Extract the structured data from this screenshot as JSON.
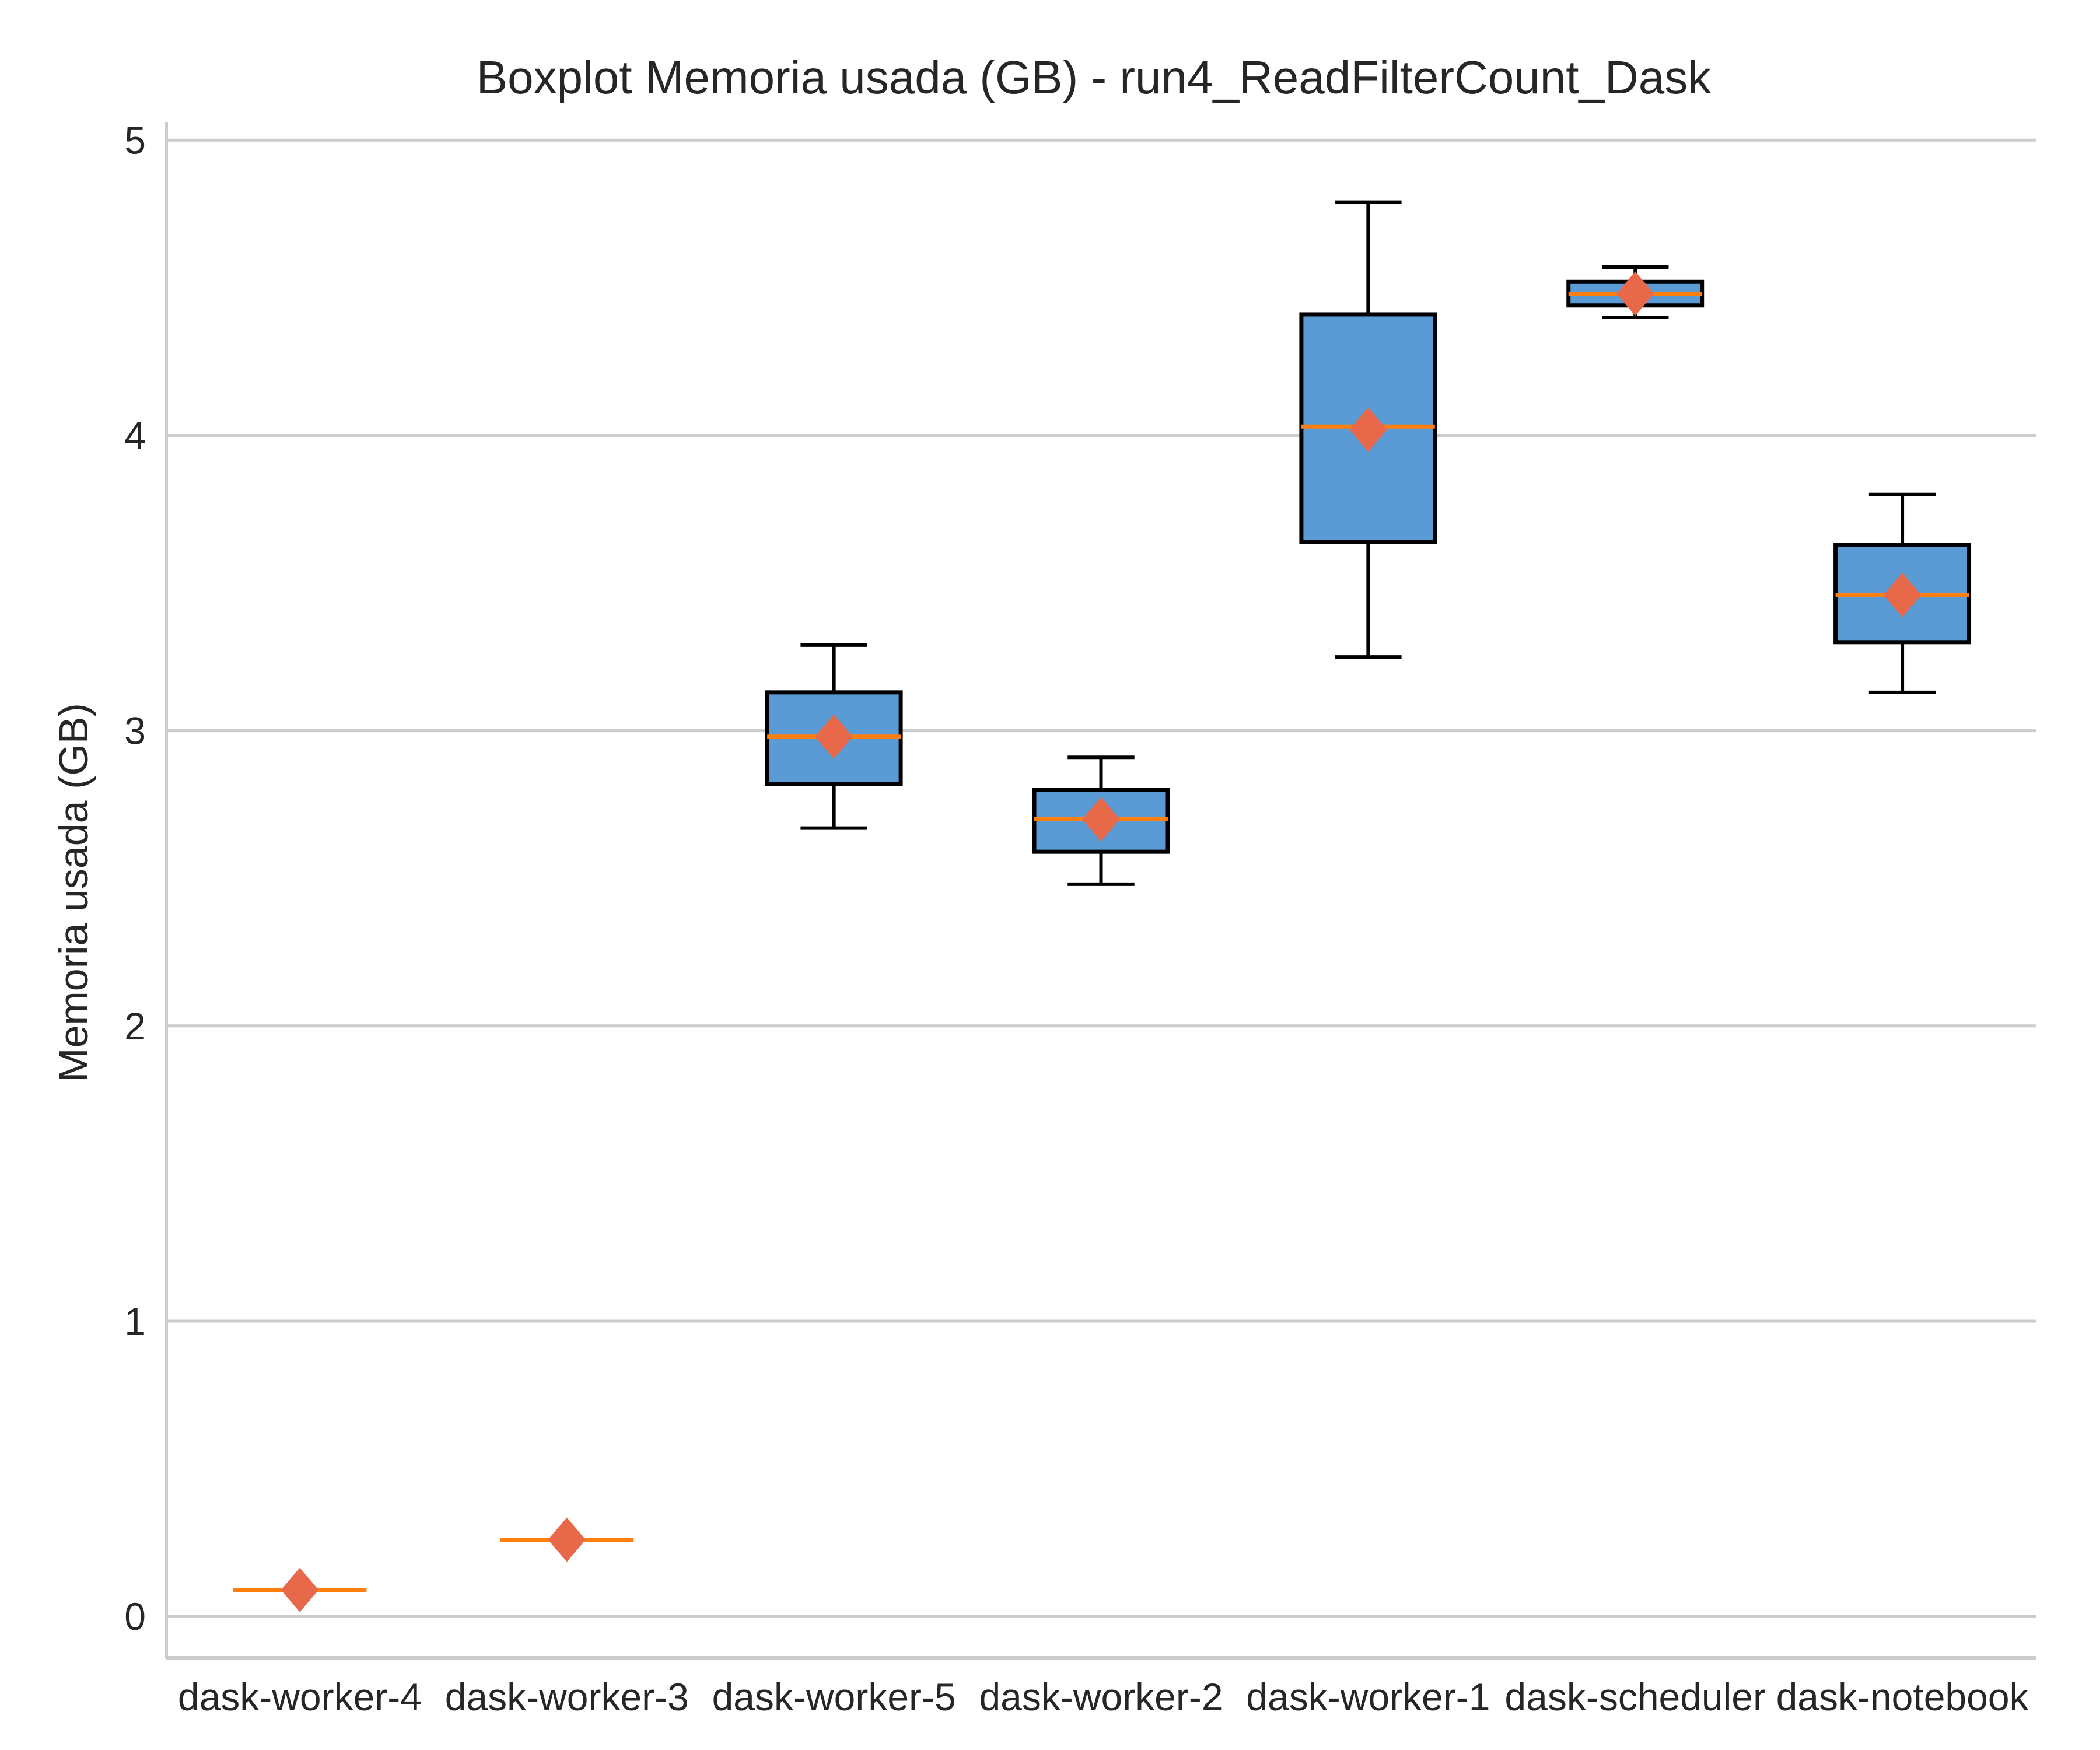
{
  "chart_data": {
    "type": "boxplot",
    "title": "Boxplot Memoria usada (GB) - run4_ReadFilterCount_Dask",
    "xlabel": "",
    "ylabel": "Memoria usada (GB)",
    "ylim": [
      -0.14,
      5.05
    ],
    "yticks": [
      0,
      1,
      2,
      3,
      4,
      5
    ],
    "grid": "horizontal",
    "categories": [
      "dask-worker-4",
      "dask-worker-3",
      "dask-worker-5",
      "dask-worker-2",
      "dask-worker-1",
      "dask-scheduler",
      "dask-notebook"
    ],
    "boxes": [
      {
        "whisker_low": 0.09,
        "q1": 0.09,
        "median": 0.09,
        "q3": 0.09,
        "whisker_high": 0.09,
        "mean": 0.09
      },
      {
        "whisker_low": 0.26,
        "q1": 0.26,
        "median": 0.26,
        "q3": 0.26,
        "whisker_high": 0.26,
        "mean": 0.26
      },
      {
        "whisker_low": 2.67,
        "q1": 2.82,
        "median": 2.98,
        "q3": 3.13,
        "whisker_high": 3.29,
        "mean": 2.98
      },
      {
        "whisker_low": 2.48,
        "q1": 2.59,
        "median": 2.7,
        "q3": 2.8,
        "whisker_high": 2.91,
        "mean": 2.7
      },
      {
        "whisker_low": 3.25,
        "q1": 3.64,
        "median": 4.03,
        "q3": 4.41,
        "whisker_high": 4.79,
        "mean": 4.02
      },
      {
        "whisker_low": 4.4,
        "q1": 4.44,
        "median": 4.48,
        "q3": 4.52,
        "whisker_high": 4.57,
        "mean": 4.48
      },
      {
        "whisker_low": 3.13,
        "q1": 3.3,
        "median": 3.46,
        "q3": 3.63,
        "whisker_high": 3.8,
        "mean": 3.46
      }
    ],
    "colors": {
      "box_fill": "#5b9bd5",
      "box_edge": "#000000",
      "median": "#ff7f0e",
      "mean_marker": "#e8684a",
      "grid": "#cccccc",
      "axis": "#cccccc"
    }
  }
}
